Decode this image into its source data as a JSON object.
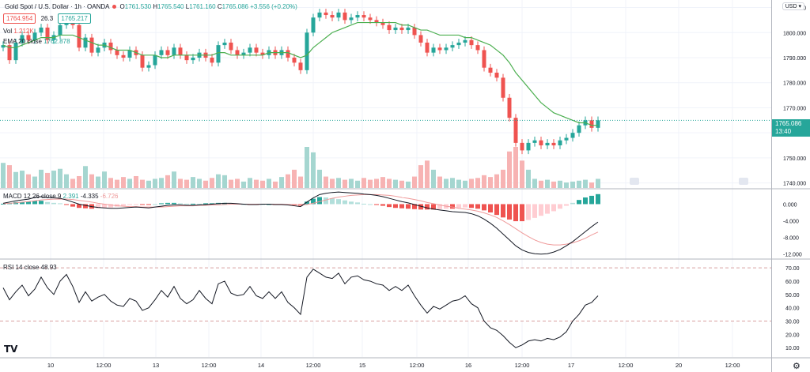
{
  "header": {
    "title": "Gold Spot / U.S. Dollar · 1h · OANDA",
    "bid": "1764.954",
    "spread": "26.3",
    "ask": "1765.217",
    "o_label": "O",
    "o_val": "1761.530",
    "h_label": "H",
    "h_val": "1765.540",
    "l_label": "L",
    "l_val": "1761.160",
    "c_label": "C",
    "c_val": "1765.086",
    "change": "+3.556 (+0.20%)",
    "vol_label": "Vol",
    "vol_val": "1.212K",
    "ema_label": "EMA 20 close",
    "ema_val": "1762.878",
    "currency": "USD"
  },
  "price_tag": {
    "price": "1765.086",
    "countdown": "13:40"
  },
  "macd_legend": {
    "label": "MACD 12 26 close 9",
    "hist": "2.391",
    "macd": "-4.335",
    "signal": "-6.726"
  },
  "rsi_legend": {
    "label": "RSI 14 close",
    "value": "48.93"
  },
  "colors": {
    "up": "#26a69a",
    "down": "#ef5350",
    "ema": "#4caf50",
    "macd": "#131722",
    "signal": "#ef9a9a",
    "rsi": "#131722",
    "grid": "#f0f3fa"
  },
  "chart_data": [
    {
      "type": "candlestick",
      "title": "Gold Spot / U.S. Dollar",
      "x_ticks": [
        "10",
        "12:00",
        "13",
        "12:00",
        "14",
        "12:00",
        "15",
        "12:00",
        "16",
        "12:00",
        "17",
        "12:00",
        "20",
        "12:00"
      ],
      "y_ticks": [
        1740,
        1750,
        1760,
        1770,
        1780,
        1790,
        1800,
        1810
      ],
      "ylim": [
        1738,
        1813
      ],
      "close": [
        1795,
        1789,
        1796,
        1799,
        1797,
        1800,
        1802,
        1797,
        1799,
        1803,
        1805,
        1803,
        1794,
        1798,
        1792,
        1794,
        1796,
        1793,
        1791,
        1790,
        1793,
        1791,
        1786,
        1787,
        1791,
        1793,
        1791,
        1794,
        1791,
        1789,
        1790,
        1792,
        1790,
        1788,
        1795,
        1796,
        1793,
        1791,
        1792,
        1794,
        1792,
        1791,
        1793,
        1791,
        1793,
        1790,
        1788,
        1785,
        1800,
        1806,
        1808,
        1807,
        1806,
        1808,
        1805,
        1806,
        1807,
        1806,
        1805,
        1804,
        1803,
        1801,
        1802,
        1801,
        1802,
        1799,
        1796,
        1792,
        1794,
        1793,
        1794,
        1795,
        1796,
        1797,
        1795,
        1793,
        1786,
        1784,
        1782,
        1774,
        1766,
        1756,
        1753,
        1756,
        1757,
        1755,
        1756,
        1755,
        1757,
        1758,
        1760,
        1763,
        1765,
        1762,
        1765
      ],
      "volume": [
        55,
        50,
        35,
        38,
        30,
        25,
        40,
        33,
        38,
        42,
        30,
        20,
        26,
        48,
        30,
        25,
        36,
        22,
        18,
        24,
        20,
        26,
        18,
        16,
        20,
        22,
        28,
        36,
        20,
        18,
        24,
        20,
        16,
        22,
        30,
        28,
        18,
        20,
        14,
        22,
        18,
        16,
        20,
        14,
        24,
        30,
        40,
        25,
        90,
        78,
        40,
        25,
        20,
        22,
        18,
        20,
        16,
        22,
        18,
        20,
        24,
        20,
        18,
        16,
        14,
        25,
        50,
        60,
        40,
        25,
        20,
        22,
        18,
        16,
        20,
        22,
        28,
        24,
        30,
        40,
        80,
        90,
        60,
        40,
        20,
        16,
        18,
        14,
        16,
        12,
        14,
        16,
        18,
        12,
        20
      ],
      "ema20": [
        1795,
        1794,
        1794,
        1795,
        1796,
        1797,
        1798,
        1798,
        1798,
        1799,
        1799,
        1799,
        1798,
        1797,
        1796,
        1795,
        1795,
        1794,
        1793,
        1793,
        1793,
        1792,
        1791,
        1791,
        1791,
        1790,
        1790,
        1791,
        1791,
        1791,
        1791,
        1791,
        1791,
        1791,
        1792,
        1792,
        1791,
        1791,
        1791,
        1791,
        1791,
        1791,
        1792,
        1792,
        1792,
        1792,
        1791,
        1790,
        1791,
        1794,
        1796,
        1798,
        1800,
        1801,
        1802,
        1803,
        1804,
        1804,
        1804,
        1804,
        1804,
        1804,
        1804,
        1803,
        1803,
        1802,
        1801,
        1801,
        1800,
        1799,
        1799,
        1799,
        1799,
        1798,
        1798,
        1797,
        1796,
        1795,
        1793,
        1791,
        1788,
        1784,
        1781,
        1778,
        1775,
        1772,
        1770,
        1768,
        1767,
        1766,
        1765,
        1764,
        1764,
        1763,
        1763
      ]
    },
    {
      "type": "macd",
      "name": "MACD 12 26 close 9",
      "y_ticks": [
        0,
        -4,
        -8,
        -12
      ],
      "ylim": [
        -13,
        3.5
      ],
      "macd": [
        0.2,
        0.5,
        0.8,
        1.0,
        1.2,
        1.6,
        1.8,
        1.6,
        1.5,
        1.4,
        1.0,
        0.5,
        0.0,
        -0.3,
        -0.6,
        -0.8,
        -0.9,
        -1.0,
        -1.0,
        -0.9,
        -0.8,
        -0.7,
        -0.8,
        -0.9,
        -0.7,
        -0.5,
        -0.3,
        -0.2,
        -0.2,
        -0.3,
        -0.3,
        -0.2,
        -0.1,
        0.0,
        0.1,
        0.2,
        0.2,
        0.1,
        0.0,
        -0.1,
        -0.1,
        0.0,
        0.0,
        -0.1,
        -0.1,
        -0.2,
        -0.4,
        -0.6,
        0.5,
        1.5,
        2.3,
        2.6,
        2.8,
        2.9,
        2.8,
        2.7,
        2.6,
        2.4,
        2.3,
        2.1,
        1.8,
        1.4,
        1.0,
        0.6,
        0.3,
        -0.1,
        -0.5,
        -0.9,
        -1.2,
        -1.4,
        -1.6,
        -1.8,
        -1.9,
        -2.0,
        -2.3,
        -2.8,
        -3.6,
        -4.6,
        -5.8,
        -7.2,
        -8.6,
        -10.0,
        -11.0,
        -11.6,
        -11.9,
        -12.0,
        -11.9,
        -11.5,
        -10.9,
        -10.0,
        -9.0,
        -7.8,
        -6.6,
        -5.4,
        -4.3
      ],
      "signal": [
        0.1,
        0.2,
        0.3,
        0.5,
        0.6,
        0.8,
        1.0,
        1.1,
        1.2,
        1.2,
        1.2,
        1.1,
        0.9,
        0.7,
        0.5,
        0.2,
        0.0,
        -0.2,
        -0.4,
        -0.5,
        -0.6,
        -0.6,
        -0.7,
        -0.7,
        -0.7,
        -0.7,
        -0.6,
        -0.5,
        -0.4,
        -0.4,
        -0.4,
        -0.3,
        -0.3,
        -0.2,
        -0.2,
        -0.1,
        0.0,
        0.0,
        0.0,
        0.0,
        0.0,
        0.0,
        0.0,
        0.0,
        0.0,
        -0.1,
        -0.1,
        -0.2,
        -0.1,
        0.2,
        0.6,
        1.0,
        1.4,
        1.7,
        1.9,
        2.1,
        2.2,
        2.3,
        2.3,
        2.3,
        2.2,
        2.1,
        1.9,
        1.6,
        1.4,
        1.1,
        0.8,
        0.4,
        0.1,
        -0.2,
        -0.5,
        -0.7,
        -1.0,
        -1.2,
        -1.4,
        -1.7,
        -2.1,
        -2.6,
        -3.2,
        -4.0,
        -4.9,
        -5.9,
        -6.9,
        -7.8,
        -8.6,
        -9.2,
        -9.6,
        -9.8,
        -9.8,
        -9.6,
        -9.3,
        -8.8,
        -8.2,
        -7.4,
        -6.7
      ]
    },
    {
      "type": "line",
      "name": "RSI 14 close",
      "y_ticks": [
        10,
        20,
        30,
        40,
        50,
        60,
        70
      ],
      "ylim": [
        3,
        76
      ],
      "bands": [
        30,
        70
      ],
      "values": [
        55,
        46,
        52,
        57,
        49,
        54,
        63,
        55,
        50,
        60,
        65,
        56,
        44,
        52,
        45,
        48,
        50,
        45,
        42,
        41,
        47,
        45,
        38,
        40,
        46,
        53,
        48,
        56,
        47,
        43,
        46,
        53,
        47,
        43,
        58,
        60,
        51,
        49,
        50,
        56,
        49,
        47,
        52,
        47,
        52,
        44,
        40,
        35,
        63,
        69,
        66,
        63,
        62,
        66,
        58,
        63,
        64,
        61,
        60,
        58,
        57,
        53,
        56,
        53,
        57,
        49,
        42,
        36,
        41,
        39,
        42,
        45,
        46,
        49,
        43,
        40,
        30,
        25,
        23,
        19,
        14,
        10,
        12,
        15,
        16,
        15,
        17,
        16,
        18,
        22,
        30,
        35,
        42,
        44,
        49
      ]
    }
  ]
}
